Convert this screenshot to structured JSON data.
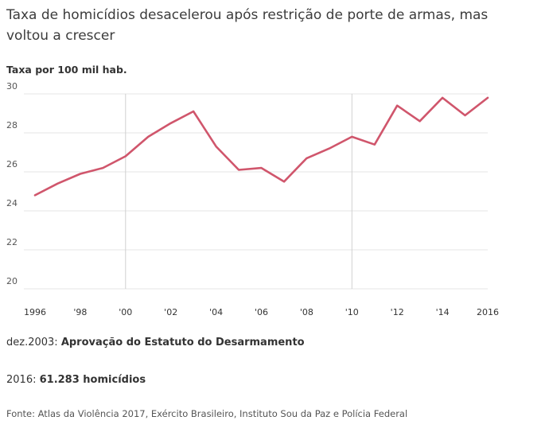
{
  "title": "Taxa de homicídios desacelerou após restrição de porte de armas, mas voltou a crescer",
  "units_label": "Taxa por 100 mil hab.",
  "notes": [
    {
      "prefix": "dez.2003: ",
      "text": "Aprovação do Estatuto do Desarmamento"
    },
    {
      "prefix": "2016: ",
      "text": "61.283 homicídios"
    }
  ],
  "source": "Fonte: Atlas da Violência 2017, Exército Brasileiro, Instituto Sou da Paz e Polícia Federal",
  "colors": {
    "line": "#d0566c",
    "grid": "#e4e4e4",
    "highlight_grid": "#d0d0d0"
  },
  "chart_data": {
    "type": "line",
    "title": "Taxa de homicídios desacelerou após restrição de porte de armas, mas voltou a crescer",
    "ylabel": "Taxa por 100 mil hab.",
    "xlabel": "",
    "x": [
      1996,
      1997,
      1998,
      1999,
      2000,
      2001,
      2002,
      2003,
      2004,
      2005,
      2006,
      2007,
      2008,
      2009,
      2010,
      2011,
      2012,
      2013,
      2014,
      2015,
      2016
    ],
    "series": [
      {
        "values": [
          24.8,
          25.4,
          25.9,
          26.2,
          26.8,
          27.8,
          28.5,
          29.1,
          27.3,
          26.1,
          26.2,
          25.5,
          26.7,
          27.2,
          27.8,
          27.4,
          29.4,
          28.6,
          29.8,
          28.9,
          29.8
        ]
      }
    ],
    "ylim": [
      20,
      30
    ],
    "yticks": [
      20,
      22,
      24,
      26,
      28,
      30
    ],
    "xlim": [
      1996,
      2016
    ],
    "xticks": [
      1996,
      1998,
      2000,
      2002,
      2004,
      2006,
      2008,
      2010,
      2012,
      2014,
      2016
    ],
    "xtick_labels": [
      "1996",
      "'98",
      "'00",
      "'02",
      "'04",
      "'06",
      "'08",
      "'10",
      "'12",
      "'14",
      "2016"
    ],
    "highlight_x": [
      2000,
      2010
    ],
    "grid": true,
    "legend": "none"
  }
}
